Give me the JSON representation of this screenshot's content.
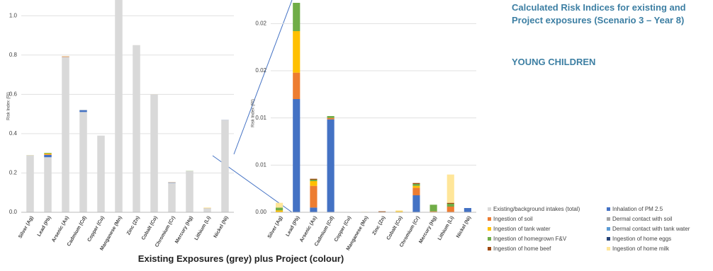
{
  "chart_data": [
    {
      "type": "bar",
      "stacked": true,
      "ylabel": "Risk Index (RI)",
      "categories": [
        "Silver (Ag)",
        "Lead (Pb)",
        "Arsenic (As)",
        "Cadmium (Cd)",
        "Copper (Cu)",
        "Manganese (Mn)",
        "Zinc (Zn)",
        "Cobalt (Co)",
        "Chromium (Cr)",
        "Mercury (Hg)",
        "Lithium (Li)",
        "Nickel (Ni)"
      ],
      "series": [
        {
          "name": "Existing/background intakes (total)",
          "color": "#d9d9d9",
          "values": [
            0.29,
            0.28,
            0.79,
            0.51,
            0.39,
            1.1,
            0.85,
            0.6,
            0.15,
            0.21,
            0.02,
            0.47
          ]
        }
      ],
      "ylim": [
        0,
        1.08
      ],
      "yticks": [
        {
          "value": 0,
          "label": "0.0"
        },
        0.2,
        0.4,
        0.6,
        0.8,
        {
          "value": 1,
          "label": "1.0"
        }
      ]
    },
    {
      "type": "bar",
      "stacked": true,
      "ylabel": "Risk Index (RI)",
      "categories": [
        "Silver (Ag)",
        "Lead (Pb)",
        "Arsenic (As)",
        "Cadmium (Cd)",
        "Copper (Cu)",
        "Manganese (Mn)",
        "Zinc (Zn)",
        "Cobalt (Co)",
        "Chromium (Cr)",
        "Mercury (Hg)",
        "Lithium (Li)",
        "Nickel (Ni)"
      ],
      "series": [
        {
          "name": "Inhalation of PM 2.5",
          "color": "#4472c4",
          "values": [
            0,
            0.012,
            0.0005,
            0.00985,
            0,
            0,
            0,
            0,
            0.0018,
            0,
            0,
            0.00045
          ]
        },
        {
          "name": "Ingestion of soil",
          "color": "#ed7d31",
          "values": [
            0,
            0.0028,
            0.0023,
            0.00015,
            0,
            0,
            0,
            0,
            0.0008,
            0.0001,
            0.0006,
            0
          ]
        },
        {
          "name": "Dermal contact with soil",
          "color": "#a5a5a5",
          "values": [
            0,
            0,
            0,
            0,
            0,
            0,
            0,
            0,
            0,
            0,
            0,
            0
          ]
        },
        {
          "name": "Ingestion of tank water",
          "color": "#ffc000",
          "values": [
            0.0002,
            0.0044,
            0.0005,
            0,
            0,
            0,
            0,
            0.0001,
            0.0002,
            0,
            0,
            0
          ]
        },
        {
          "name": "Dermal contact with tank water",
          "color": "#5b9bd5",
          "values": [
            0,
            0,
            0,
            0,
            0,
            0,
            0,
            0,
            0,
            0,
            0,
            0
          ]
        },
        {
          "name": "Ingestion of homegrown F&V",
          "color": "#70ad47",
          "values": [
            0.0003,
            0.003,
            0.00015,
            0.0002,
            0,
            0,
            0,
            0,
            0.0002,
            0.0007,
            0.0003,
            0
          ]
        },
        {
          "name": "Ingestion of home eggs",
          "color": "#264478",
          "values": [
            0,
            0,
            0,
            0,
            0,
            0,
            0,
            0,
            0,
            0,
            0,
            0
          ]
        },
        {
          "name": "Ingestion of home beef",
          "color": "#9e480e",
          "values": [
            0,
            0,
            0.0001,
            0,
            0,
            0,
            0.0001,
            0,
            0.0001,
            0,
            0.0001,
            0
          ]
        },
        {
          "name": "Ingestion of home milk",
          "color": "#ffe699",
          "values": [
            0.0005,
            0,
            0,
            0,
            0,
            5e-05,
            0,
            0.0001,
            0,
            0,
            0.003,
            0
          ]
        }
      ],
      "ylim": [
        0,
        0.0225
      ],
      "yticks": [
        {
          "value": 0,
          "label": "0.00"
        },
        {
          "value": 0.005,
          "label": "0.01"
        },
        {
          "value": 0.01,
          "label": "0.01"
        },
        {
          "value": 0.015,
          "label": "0.02"
        },
        {
          "value": 0.02,
          "label": "0.02"
        }
      ]
    }
  ],
  "header": {
    "title": "Calculated Risk Indices for existing and Project exposures (Scenario 3 – Year 8)",
    "subtitle": "YOUNG CHILDREN"
  },
  "caption": "Existing Exposures (grey) plus Project (colour)"
}
